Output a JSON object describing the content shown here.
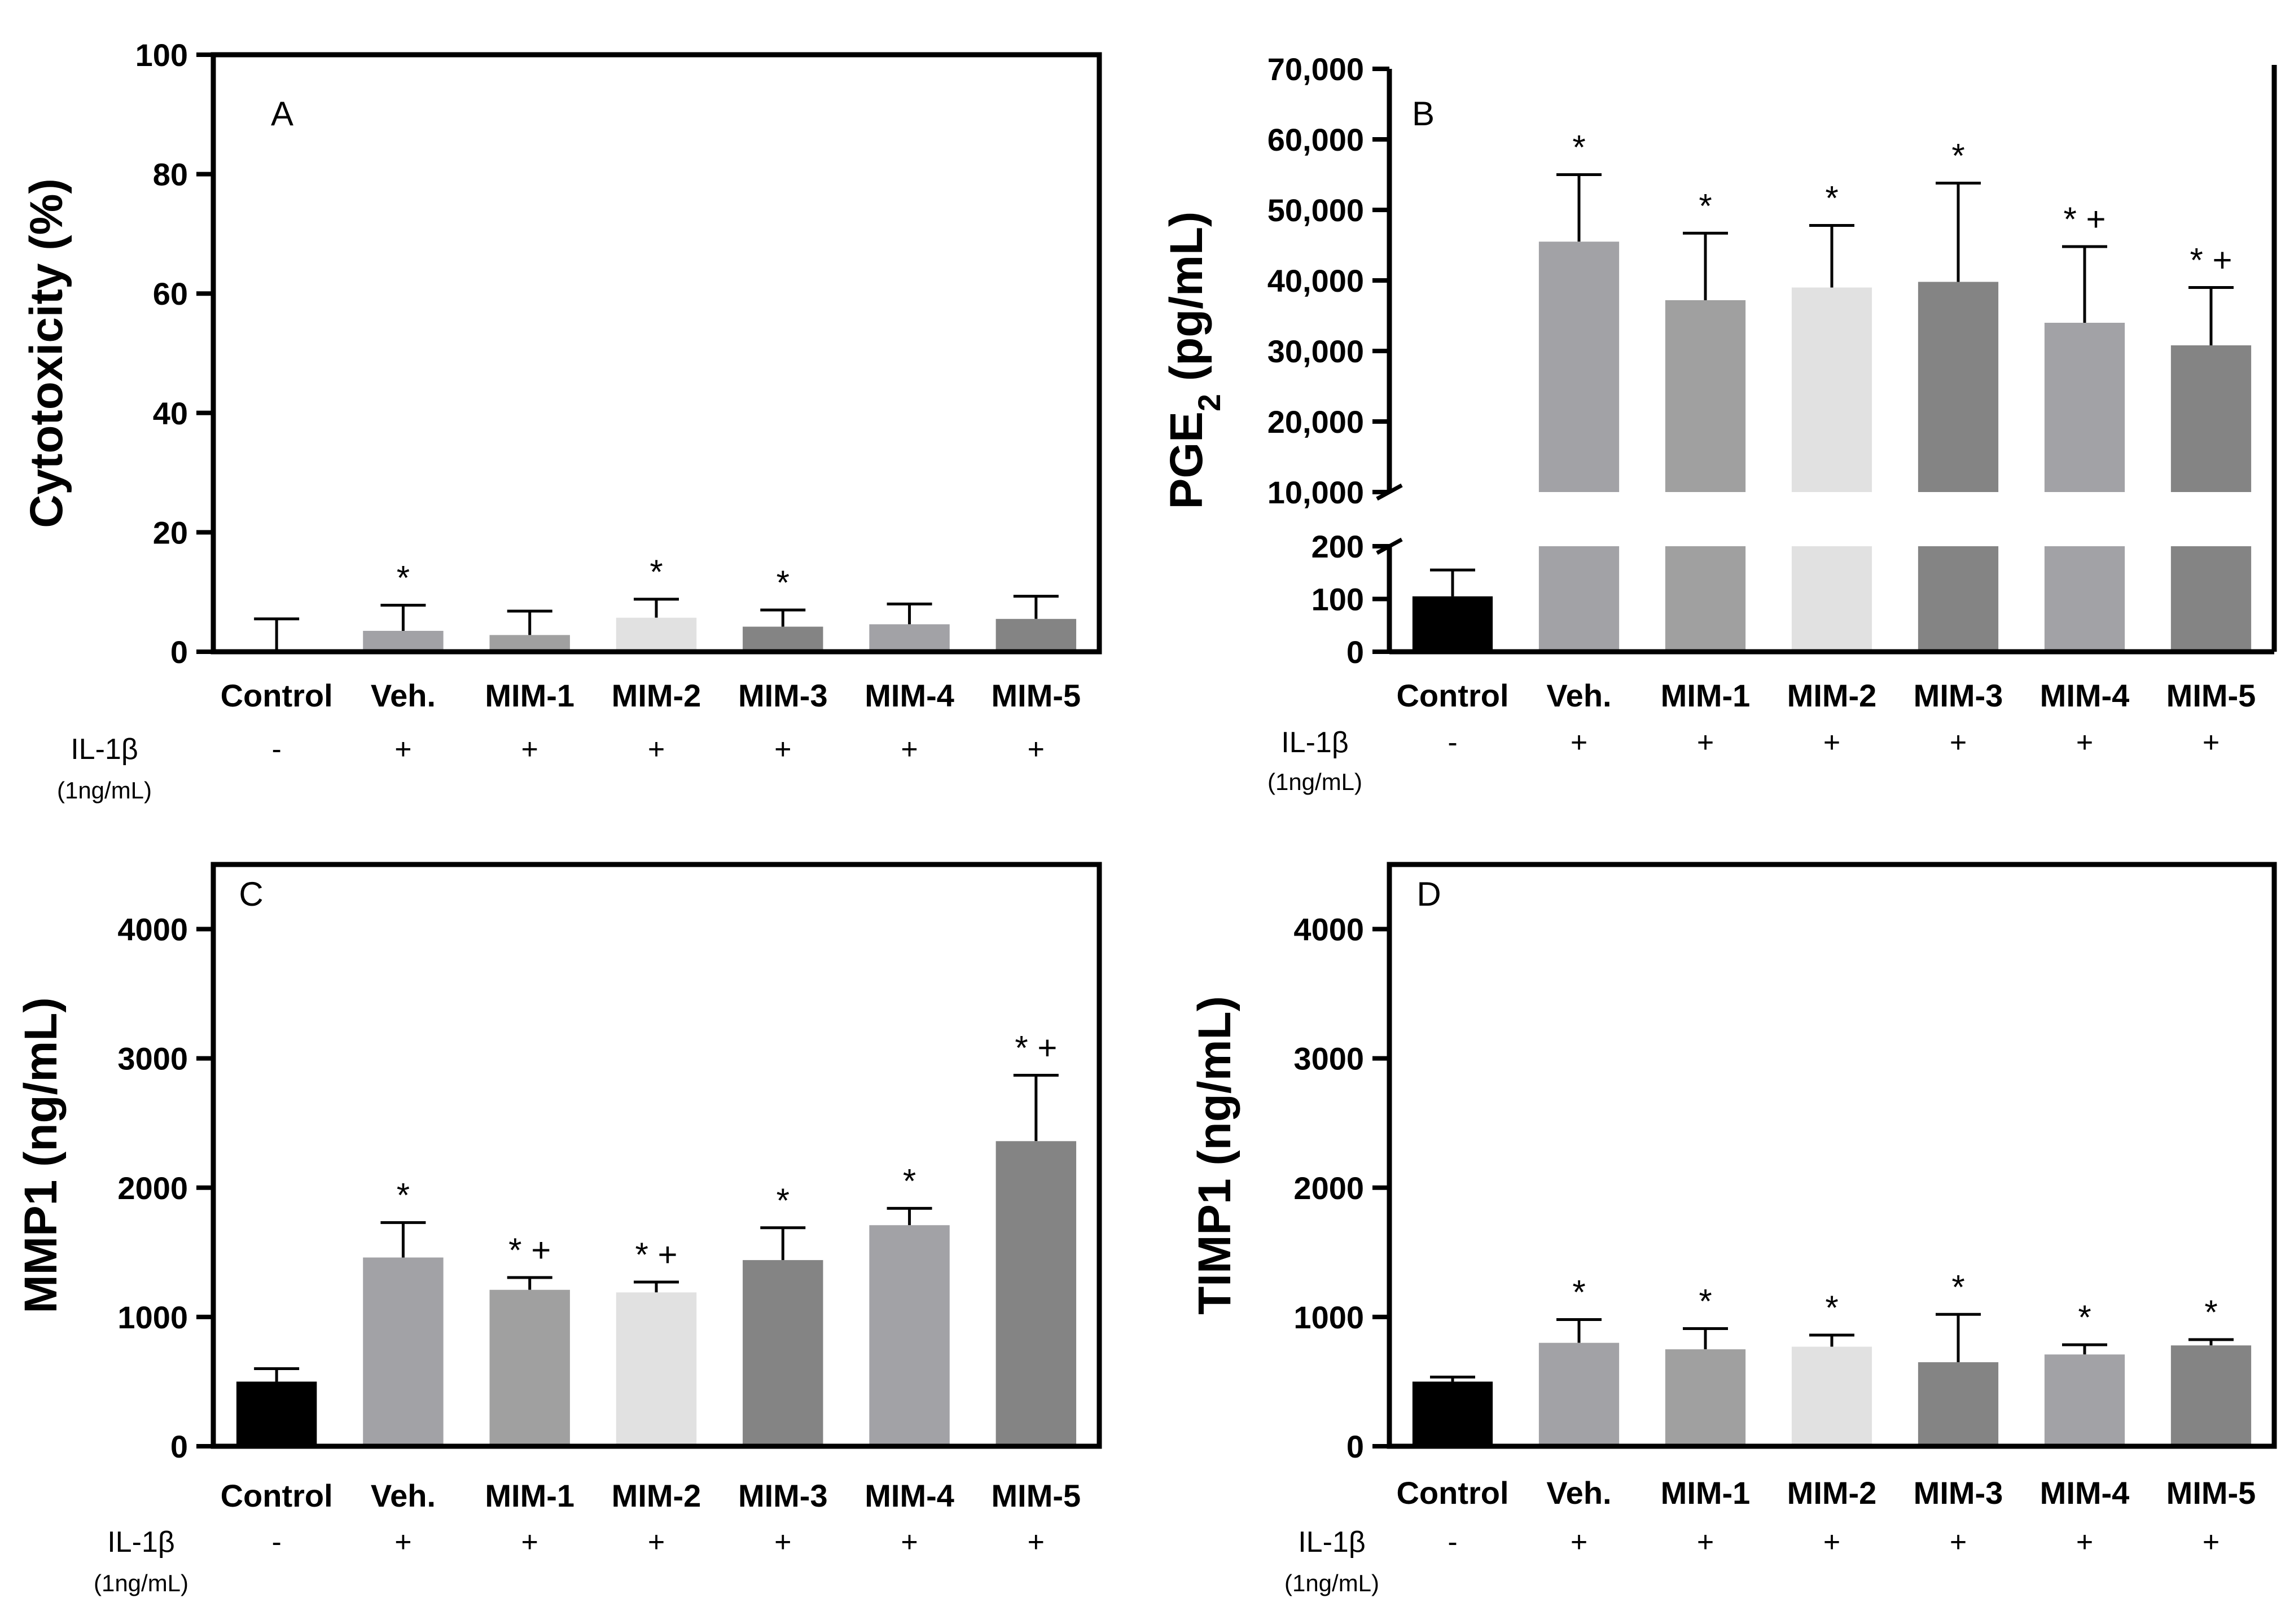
{
  "colors": {
    "control": "#000000",
    "veh": "#a2a2a6",
    "mim1": "#a0a0a0",
    "mim2": "#e1e1e1",
    "mim3": "#848484",
    "mim4": "#a2a2a6",
    "mim5": "#848484",
    "axis": "#000000"
  },
  "chart_data": [
    {
      "id": "A",
      "type": "bar",
      "panel_label": "A",
      "ylabel": "Cytotoxicity (%)",
      "xlabel": "",
      "categories": [
        "Control",
        "Veh.",
        "MIM-1",
        "MIM-2",
        "MIM-3",
        "MIM-4",
        "MIM-5"
      ],
      "values": [
        0,
        3.5,
        2.8,
        5.7,
        4.2,
        4.6,
        5.5
      ],
      "errors": [
        5.5,
        4.3,
        4.0,
        3.1,
        2.8,
        3.4,
        3.8
      ],
      "significance": [
        "",
        "*",
        "",
        "*",
        "*",
        "",
        ""
      ],
      "ylim": [
        0,
        100
      ],
      "yticks": [
        0,
        20,
        40,
        60,
        80,
        100
      ],
      "ytick_labels": [
        "0",
        "20",
        "40",
        "60",
        "80",
        "100"
      ],
      "treatment_label": "IL-1β",
      "treatment_sublabel": "(1ng/mL)",
      "treatment": [
        "-",
        "+",
        "+",
        "+",
        "+",
        "+",
        "+"
      ]
    },
    {
      "id": "B",
      "type": "bar",
      "panel_label": "B",
      "ylabel_main": "PGE",
      "ylabel_sub": "2",
      "ylabel_rest": " (pg/mL)",
      "xlabel": "",
      "categories": [
        "Control",
        "Veh.",
        "MIM-1",
        "MIM-2",
        "MIM-3",
        "MIM-4",
        "MIM-5"
      ],
      "values": [
        105,
        45500,
        37200,
        39000,
        39800,
        34000,
        30800
      ],
      "errors": [
        50,
        9500,
        9500,
        8800,
        14000,
        10800,
        8200
      ],
      "significance": [
        "",
        "*",
        "*",
        "*",
        "*",
        "* +",
        "* +"
      ],
      "axis_break": true,
      "lower_ylim": [
        0,
        200
      ],
      "upper_ylim": [
        10000,
        70000
      ],
      "yticks_lower": [
        0,
        100,
        200
      ],
      "ytick_labels_lower": [
        "0",
        "100",
        "200"
      ],
      "yticks_upper": [
        10000,
        20000,
        30000,
        40000,
        50000,
        60000,
        70000
      ],
      "ytick_labels_upper": [
        "10,000",
        "20,000",
        "30,000",
        "40,000",
        "50,000",
        "60,000",
        "70,000"
      ],
      "treatment_label": "IL-1β",
      "treatment_sublabel": "(1ng/mL)",
      "treatment": [
        "-",
        "+",
        "+",
        "+",
        "+",
        "+",
        "+"
      ]
    },
    {
      "id": "C",
      "type": "bar",
      "panel_label": "C",
      "ylabel": "MMP1 (ng/mL)",
      "xlabel": "",
      "categories": [
        "Control",
        "Veh.",
        "MIM-1",
        "MIM-2",
        "MIM-3",
        "MIM-4",
        "MIM-5"
      ],
      "values": [
        500,
        1460,
        1210,
        1190,
        1440,
        1710,
        2360
      ],
      "errors": [
        100,
        270,
        95,
        80,
        250,
        130,
        510
      ],
      "significance": [
        "",
        "*",
        "* +",
        "* +",
        "*",
        "*",
        "* +"
      ],
      "ylim": [
        0,
        4500
      ],
      "yticks": [
        0,
        1000,
        2000,
        3000,
        4000
      ],
      "ytick_labels": [
        "0",
        "1000",
        "2000",
        "3000",
        "4000"
      ],
      "treatment_label": "IL-1β",
      "treatment_sublabel": "(1ng/mL)",
      "treatment": [
        "-",
        "+",
        "+",
        "+",
        "+",
        "+",
        "+"
      ]
    },
    {
      "id": "D",
      "type": "bar",
      "panel_label": "D",
      "ylabel": "TIMP1 (ng/mL)",
      "xlabel": "",
      "categories": [
        "Control",
        "Veh.",
        "MIM-1",
        "MIM-2",
        "MIM-3",
        "MIM-4",
        "MIM-5"
      ],
      "values": [
        500,
        800,
        750,
        770,
        650,
        710,
        780
      ],
      "errors": [
        35,
        180,
        160,
        90,
        370,
        75,
        45
      ],
      "significance": [
        "",
        "*",
        "*",
        "*",
        "*",
        "*",
        "*"
      ],
      "ylim": [
        0,
        4500
      ],
      "yticks": [
        0,
        1000,
        2000,
        3000,
        4000
      ],
      "ytick_labels": [
        "0",
        "1000",
        "2000",
        "3000",
        "4000"
      ],
      "treatment_label": "IL-1β",
      "treatment_sublabel": "(1ng/mL)",
      "treatment": [
        "-",
        "+",
        "+",
        "+",
        "+",
        "+",
        "+"
      ]
    }
  ]
}
